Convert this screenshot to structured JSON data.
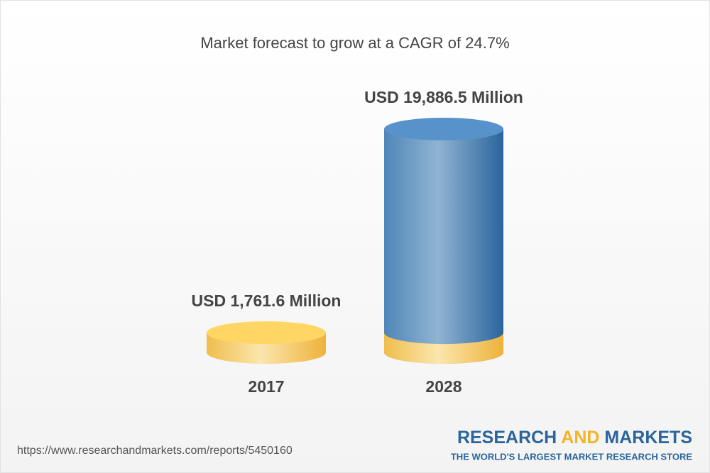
{
  "chart_data": {
    "type": "cylinder",
    "title": "Market forecast to grow at a CAGR of 24.7%",
    "categories": [
      "2017",
      "2028"
    ],
    "values": [
      1761.6,
      19886.5
    ],
    "value_labels": [
      "USD 1,761.6 Million",
      "USD 19,886.5 Million"
    ],
    "colors": [
      "#f2c25a",
      "#4f86b8"
    ]
  },
  "footer": {
    "source": "https://www.researchandmarkets.com/reports/5450160",
    "brand_parts": [
      "RESEARCH",
      "AND",
      "MARKETS"
    ],
    "tagline": "THE WORLD'S LARGEST MARKET RESEARCH STORE"
  }
}
